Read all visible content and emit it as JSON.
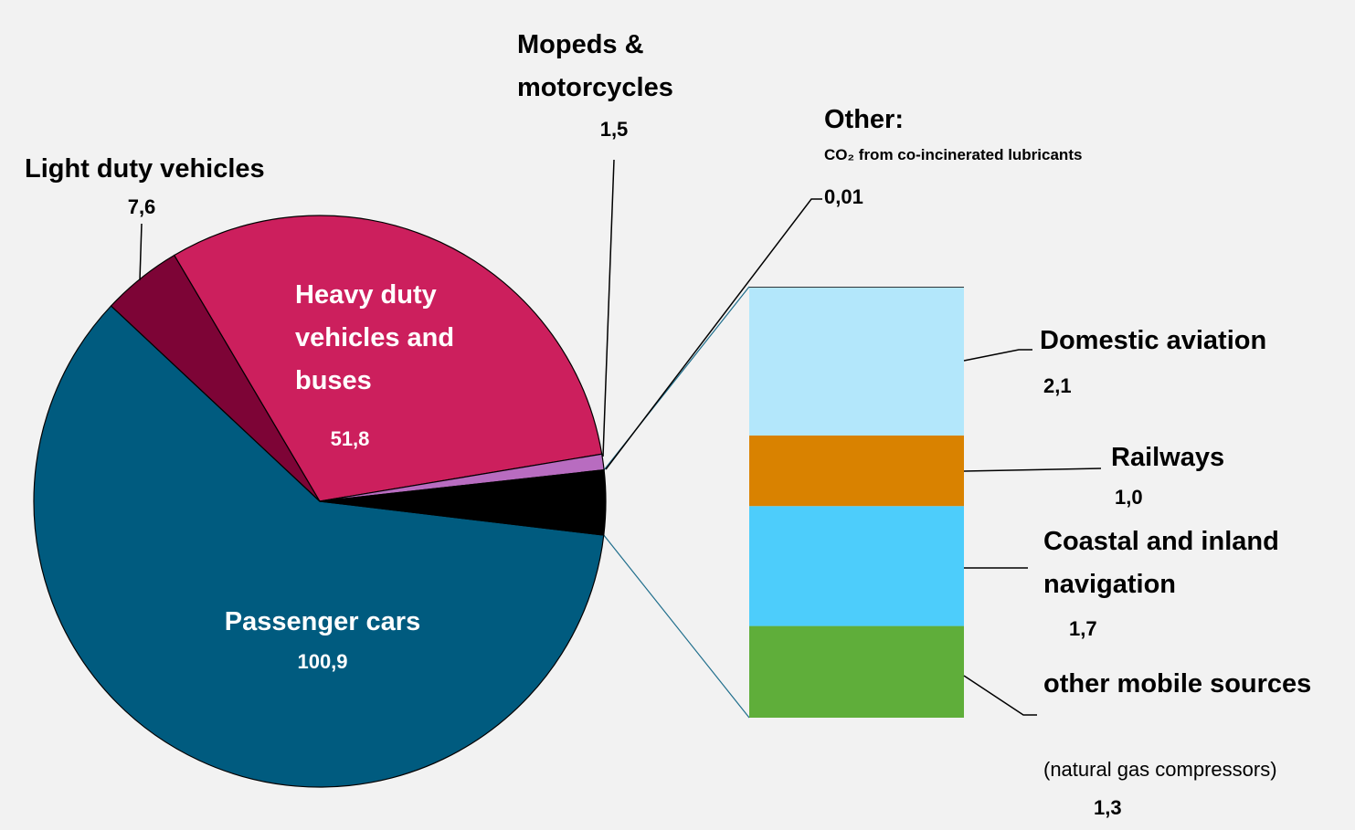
{
  "chart_data": {
    "type": "pie",
    "categories": [
      "Passenger cars",
      "Heavy duty vehicles and buses",
      "Light duty vehicles",
      "Mopeds & motorcycles"
    ],
    "values": [
      100.9,
      51.8,
      7.6,
      1.5
    ],
    "value_labels": [
      "100,9",
      "51,8",
      "7,6",
      "1,5"
    ],
    "colors": [
      "#005b7f",
      "#cc1f5d",
      "#7d0436",
      "#b86cc0"
    ],
    "bar": {
      "categories": [
        "Other:",
        "Domestic aviation",
        "Railways",
        "Coastal and inland navigation",
        "other mobile sources"
      ],
      "notes": [
        "CO₂ from co-incinerated lubricants",
        null,
        null,
        null,
        "(natural gas compressors)"
      ],
      "values": [
        0.01,
        2.1,
        1.0,
        1.7,
        1.3
      ],
      "value_labels": [
        "0,01",
        "2,1",
        "1,0",
        "1,7",
        "1,3"
      ],
      "colors": [
        "#000000",
        "#b3e7fb",
        "#d98200",
        "#4dcdfb",
        "#5fae3a"
      ],
      "aggregate_color": "#000000"
    }
  }
}
